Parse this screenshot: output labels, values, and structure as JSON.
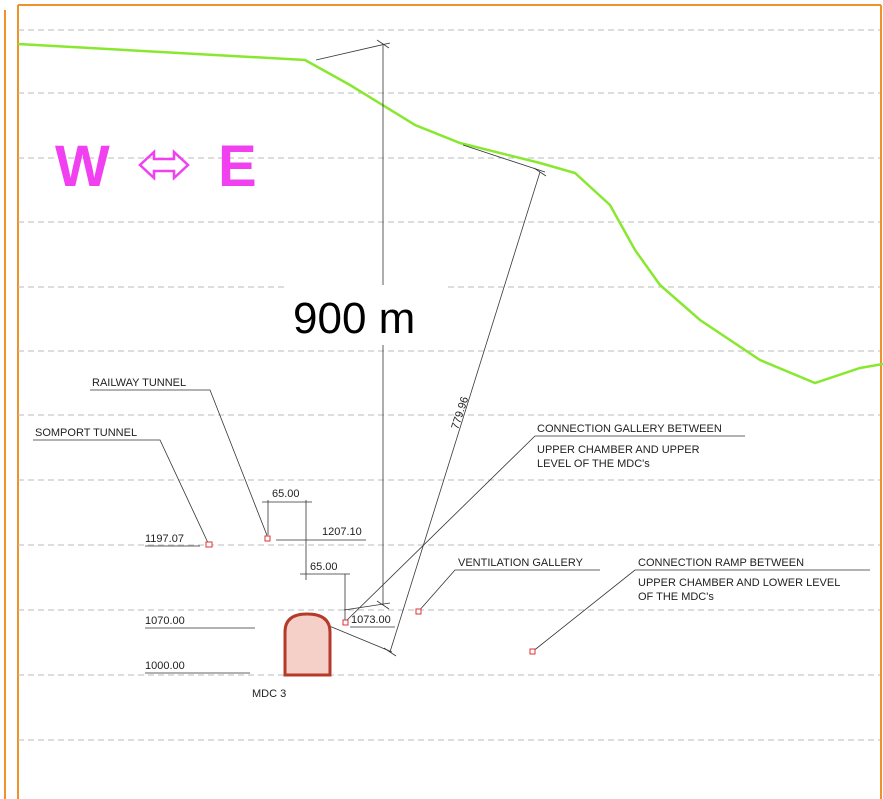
{
  "orientation": {
    "west": "W",
    "east": "E"
  },
  "height_label": "900 m",
  "slope_label": "779.96",
  "labels": {
    "railway_tunnel": "RAILWAY TUNNEL",
    "somport_tunnel": "SOMPORT TUNNEL",
    "connection_gallery": [
      "CONNECTION GALLERY BETWEEN",
      "UPPER CHAMBER AND UPPER",
      "LEVEL OF THE MDC's"
    ],
    "ventilation_gallery": "VENTILATION GALLERY",
    "connection_ramp": [
      "CONNECTION RAMP BETWEEN",
      "UPPER CHAMBER AND LOWER LEVEL",
      "OF THE MDC's"
    ],
    "mdc": "MDC 3"
  },
  "dimensions": {
    "offset_upper": "65.00",
    "offset_lower": "65.00"
  },
  "elevations": {
    "railway": "1207.10",
    "somport": "1197.07",
    "mdc_top": "1070.00",
    "gallery": "1073.00",
    "mdc_floor": "1000.00"
  }
}
